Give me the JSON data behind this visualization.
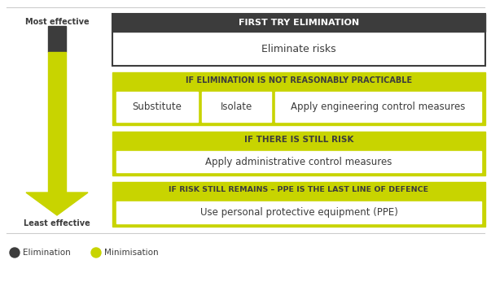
{
  "bg_color": "#ffffff",
  "dark_header_color": "#3c3c3c",
  "lime_color": "#c8d400",
  "white": "#ffffff",
  "dark_border": "#3c3c3c",
  "text_dark": "#3c3c3c",
  "text_white": "#ffffff",
  "arrow_dark": "#3c3c3c",
  "arrow_lime": "#c8d400",
  "sep_line_color": "#cccccc",
  "most_effective_label": "Most effective",
  "least_effective_label": "Least effective",
  "row1_header": "FIRST TRY ELIMINATION",
  "row1_body": "Eliminate risks",
  "row2_header": "IF ELIMINATION IS NOT REASONABLY PRACTICABLE",
  "row2_cells": [
    "Substitute",
    "Isolate",
    "Apply engineering control measures"
  ],
  "row3_header": "IF THERE IS STILL RISK",
  "row3_body": "Apply administrative control measures",
  "row4_header": "IF RISK STILL REMAINS – PPE IS THE LAST LINE OF DEFENCE",
  "row4_body": "Use personal protective equipment (PPE)",
  "legend_elimination": "Elimination",
  "legend_minimisation": "Minimisation"
}
